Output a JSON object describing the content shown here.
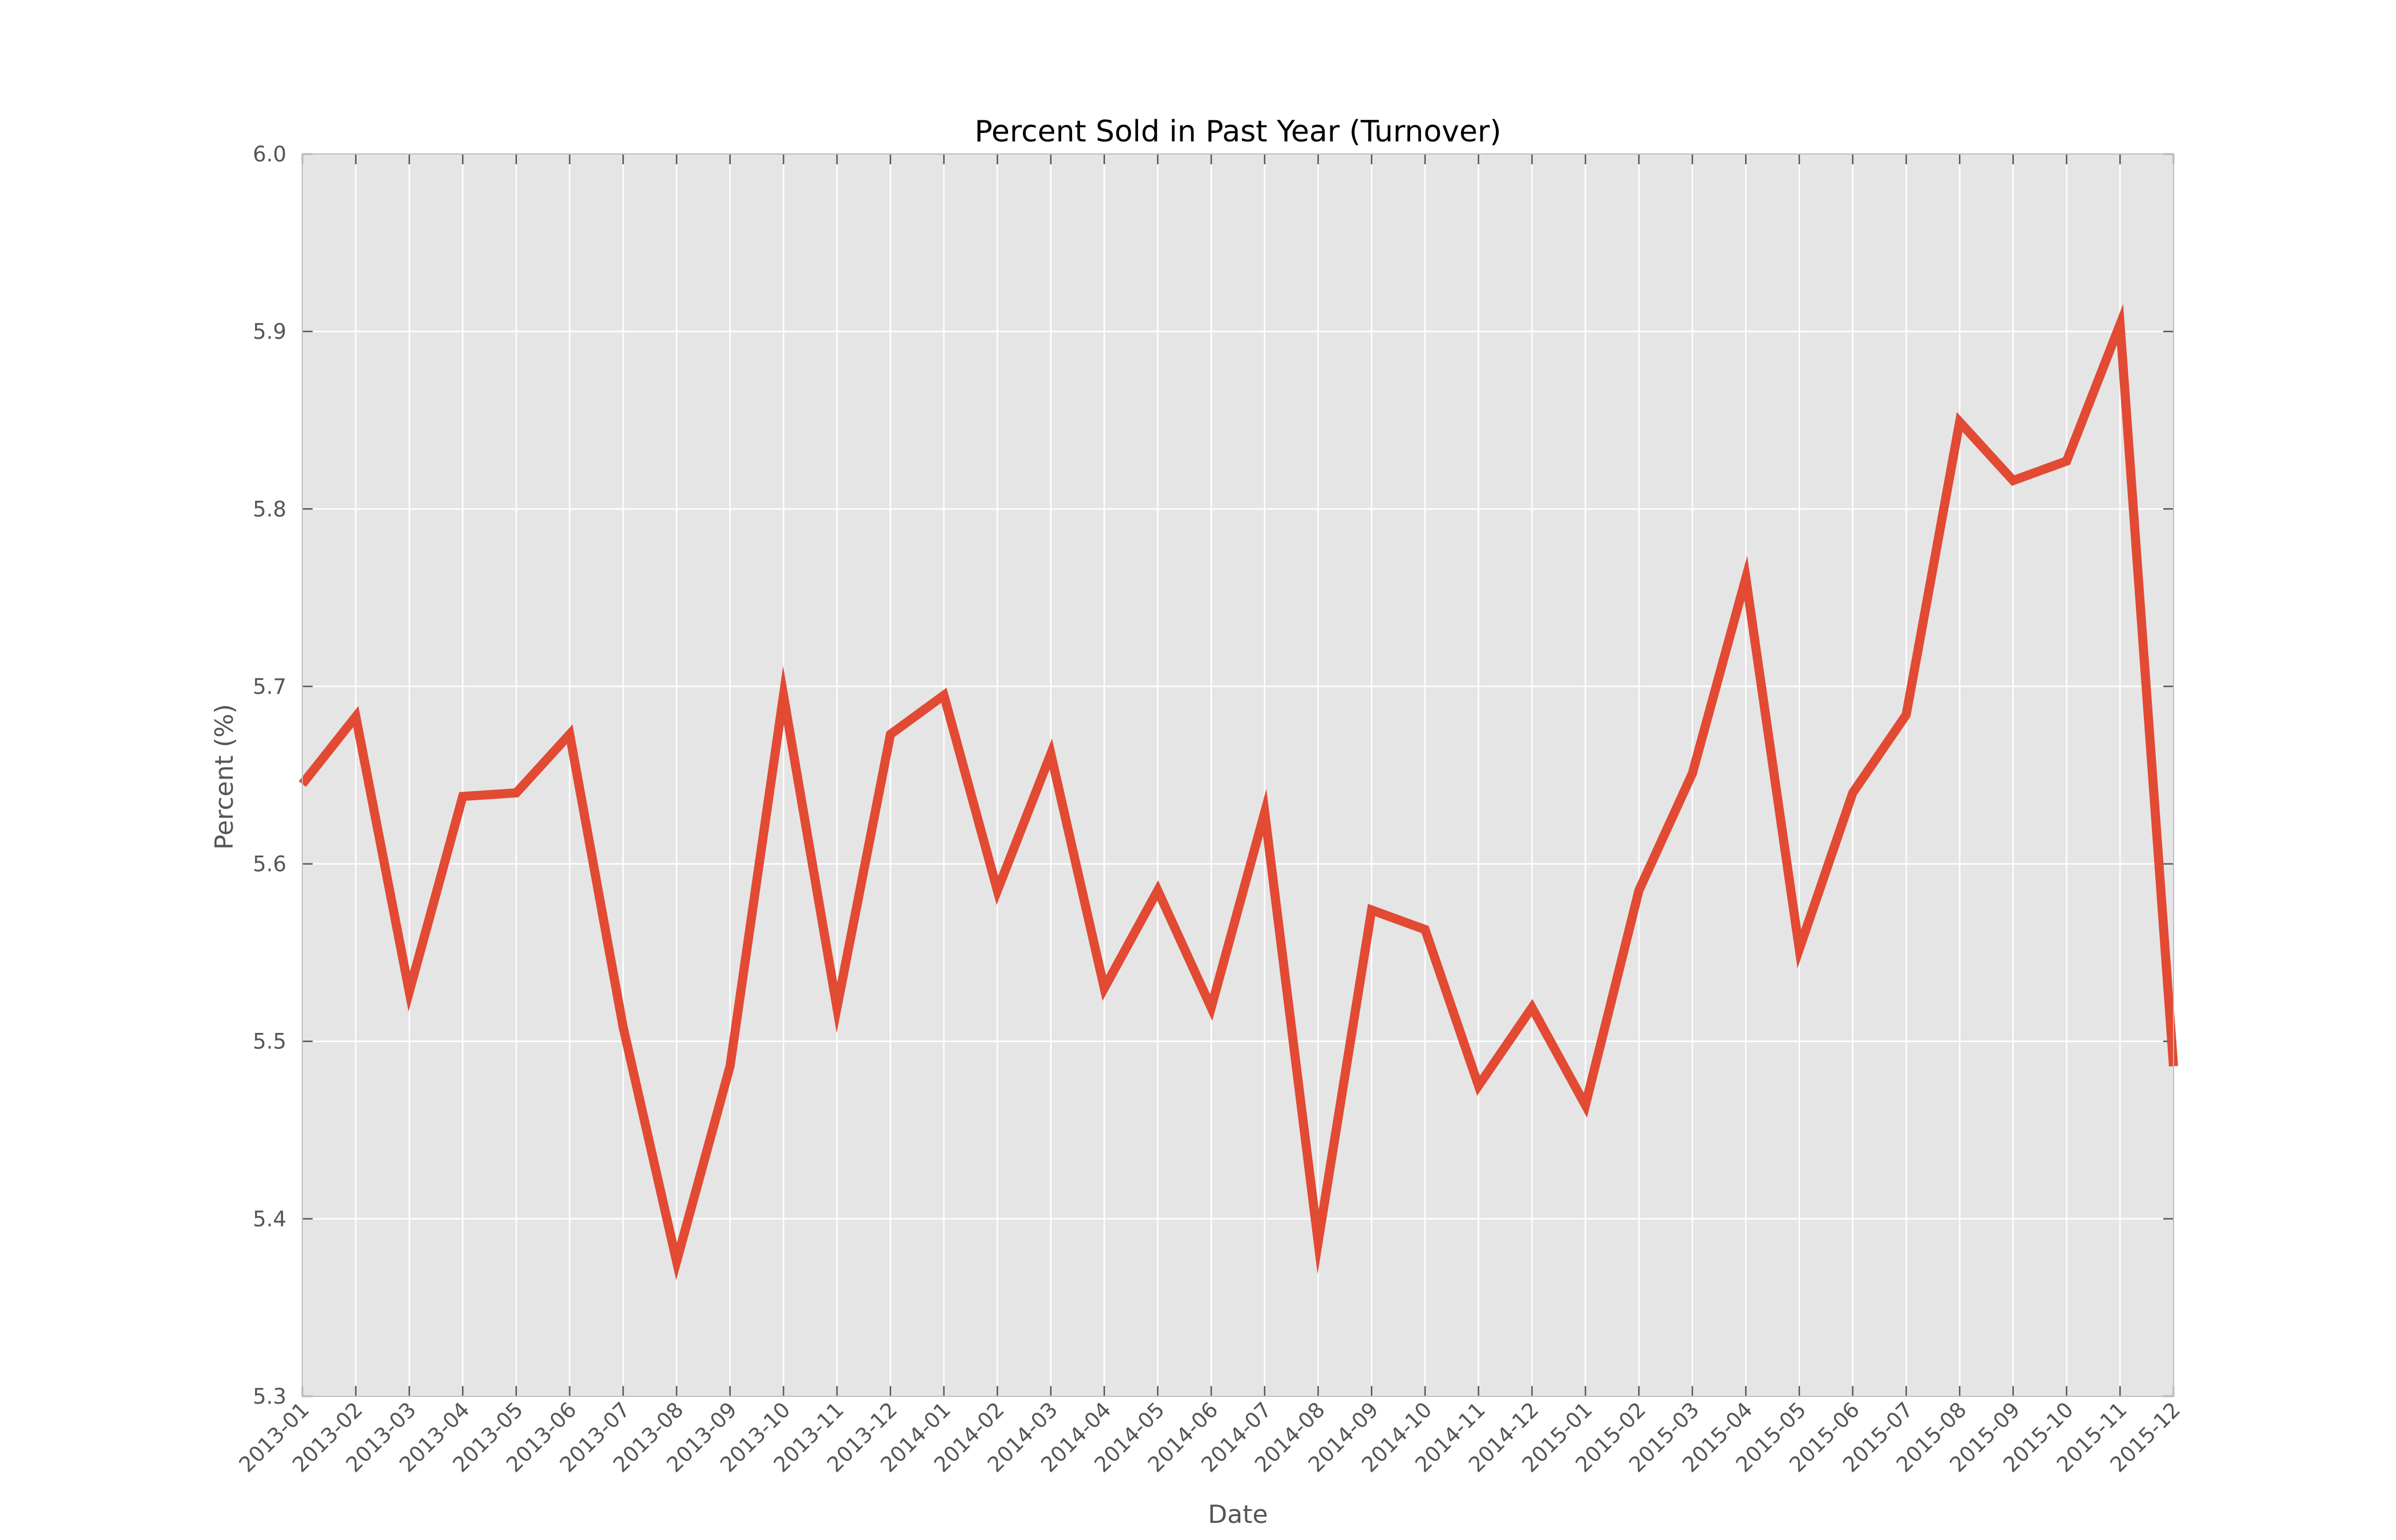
{
  "chart_data": {
    "type": "line",
    "title": "Percent Sold in Past Year (Turnover)",
    "xlabel": "Date",
    "ylabel": "Percent (%)",
    "ylim": [
      5.3,
      6.0
    ],
    "yticks": [
      5.3,
      5.4,
      5.5,
      5.6,
      5.7,
      5.8,
      5.9,
      6.0
    ],
    "ytick_labels": [
      "5.3",
      "5.4",
      "5.5",
      "5.6",
      "5.7",
      "5.8",
      "5.9",
      "6.0"
    ],
    "grid": true,
    "background": "#e5e5e5",
    "grid_color": "#ffffff",
    "line_color": "#e24a33",
    "categories": [
      "2013-01",
      "2013-02",
      "2013-03",
      "2013-04",
      "2013-05",
      "2013-06",
      "2013-07",
      "2013-08",
      "2013-09",
      "2013-10",
      "2013-11",
      "2013-12",
      "2014-01",
      "2014-02",
      "2014-03",
      "2014-04",
      "2014-05",
      "2014-06",
      "2014-07",
      "2014-08",
      "2014-09",
      "2014-10",
      "2014-11",
      "2014-12",
      "2015-01",
      "2015-02",
      "2015-03",
      "2015-04",
      "2015-05",
      "2015-06",
      "2015-07",
      "2015-08",
      "2015-09",
      "2015-10",
      "2015-11",
      "2015-12"
    ],
    "series": [
      {
        "values": [
          5.645,
          5.683,
          5.528,
          5.638,
          5.64,
          5.673,
          5.508,
          5.376,
          5.486,
          5.695,
          5.519,
          5.673,
          5.695,
          5.585,
          5.662,
          5.53,
          5.585,
          5.519,
          5.629,
          5.387,
          5.574,
          5.563,
          5.475,
          5.519,
          5.464,
          5.585,
          5.651,
          5.761,
          5.552,
          5.64,
          5.684,
          5.849,
          5.816,
          5.827,
          5.904,
          5.486
        ]
      }
    ]
  }
}
